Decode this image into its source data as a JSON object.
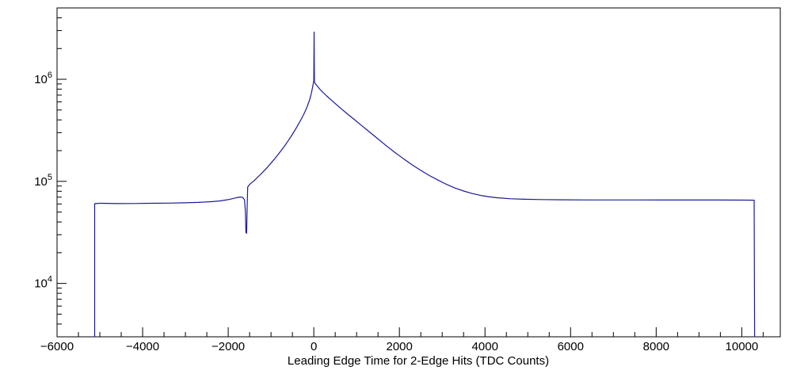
{
  "title": "",
  "colors": {
    "line": "#1a1a99",
    "axis": "#000000",
    "background": "#ffffff",
    "text": "#000000"
  },
  "chart_data": {
    "type": "line",
    "subtype": "histogram-step-logy",
    "grid": false,
    "legend": "none",
    "scale": {
      "x": "linear",
      "y": "log"
    },
    "xlabel": "Leading Edge Time for 2-Edge Hits (TDC Counts)",
    "ylabel": "",
    "xlim": [
      -6000,
      10900
    ],
    "ylim": [
      3000,
      5000000
    ],
    "x_ticks": {
      "minor_step": 500,
      "majors": [
        {
          "v": -6000,
          "label": "−6000"
        },
        {
          "v": -4000,
          "label": "−4000"
        },
        {
          "v": -2000,
          "label": "−2000"
        },
        {
          "v": 0,
          "label": "0"
        },
        {
          "v": 2000,
          "label": "2000"
        },
        {
          "v": 4000,
          "label": "4000"
        },
        {
          "v": 6000,
          "label": "6000"
        },
        {
          "v": 8000,
          "label": "8000"
        },
        {
          "v": 10000,
          "label": "10000"
        }
      ]
    },
    "y_ticks": {
      "base": "10",
      "decade_exponents": [
        4,
        5,
        6
      ]
    },
    "points": [
      [
        -5120,
        3000
      ],
      [
        -5120,
        60500
      ],
      [
        -5000,
        61000
      ],
      [
        -4600,
        60600
      ],
      [
        -4200,
        60700
      ],
      [
        -3800,
        61000
      ],
      [
        -3400,
        61200
      ],
      [
        -3000,
        61600
      ],
      [
        -2700,
        62200
      ],
      [
        -2400,
        63200
      ],
      [
        -2200,
        64200
      ],
      [
        -2000,
        66200
      ],
      [
        -1900,
        67600
      ],
      [
        -1800,
        69200
      ],
      [
        -1720,
        70200
      ],
      [
        -1660,
        69500
      ],
      [
        -1620,
        66000
      ],
      [
        -1600,
        52000
      ],
      [
        -1585,
        31500
      ],
      [
        -1570,
        31000
      ],
      [
        -1555,
        60000
      ],
      [
        -1545,
        88000
      ],
      [
        -1520,
        91000
      ],
      [
        -1480,
        95000
      ],
      [
        -1400,
        101000
      ],
      [
        -1300,
        111000
      ],
      [
        -1200,
        122000
      ],
      [
        -1100,
        135000
      ],
      [
        -1000,
        151000
      ],
      [
        -900,
        169000
      ],
      [
        -800,
        191000
      ],
      [
        -700,
        217000
      ],
      [
        -600,
        249000
      ],
      [
        -500,
        289000
      ],
      [
        -400,
        338000
      ],
      [
        -300,
        402000
      ],
      [
        -250,
        440000
      ],
      [
        -200,
        487000
      ],
      [
        -150,
        545000
      ],
      [
        -100,
        625000
      ],
      [
        -60,
        720000
      ],
      [
        -30,
        830000
      ],
      [
        -10,
        920000
      ],
      [
        0,
        955000
      ],
      [
        6,
        2900000
      ],
      [
        14,
        940000
      ],
      [
        40,
        900000
      ],
      [
        80,
        860000
      ],
      [
        140,
        800000
      ],
      [
        200,
        755000
      ],
      [
        300,
        688000
      ],
      [
        400,
        630000
      ],
      [
        500,
        578000
      ],
      [
        650,
        510000
      ],
      [
        800,
        452000
      ],
      [
        950,
        402000
      ],
      [
        1100,
        357000
      ],
      [
        1300,
        305000
      ],
      [
        1500,
        260000
      ],
      [
        1700,
        222000
      ],
      [
        1900,
        191000
      ],
      [
        2100,
        166000
      ],
      [
        2300,
        145000
      ],
      [
        2500,
        128000
      ],
      [
        2700,
        114000
      ],
      [
        2900,
        103000
      ],
      [
        3100,
        93500
      ],
      [
        3300,
        86000
      ],
      [
        3500,
        80500
      ],
      [
        3700,
        76000
      ],
      [
        3900,
        72800
      ],
      [
        4100,
        70500
      ],
      [
        4300,
        69000
      ],
      [
        4600,
        67500
      ],
      [
        4900,
        66800
      ],
      [
        5300,
        66300
      ],
      [
        5800,
        66000
      ],
      [
        6400,
        65800
      ],
      [
        7000,
        65700
      ],
      [
        7600,
        65700
      ],
      [
        8200,
        65600
      ],
      [
        8800,
        65600
      ],
      [
        9400,
        65600
      ],
      [
        10000,
        65500
      ],
      [
        10290,
        65400
      ],
      [
        10300,
        3000
      ]
    ]
  }
}
